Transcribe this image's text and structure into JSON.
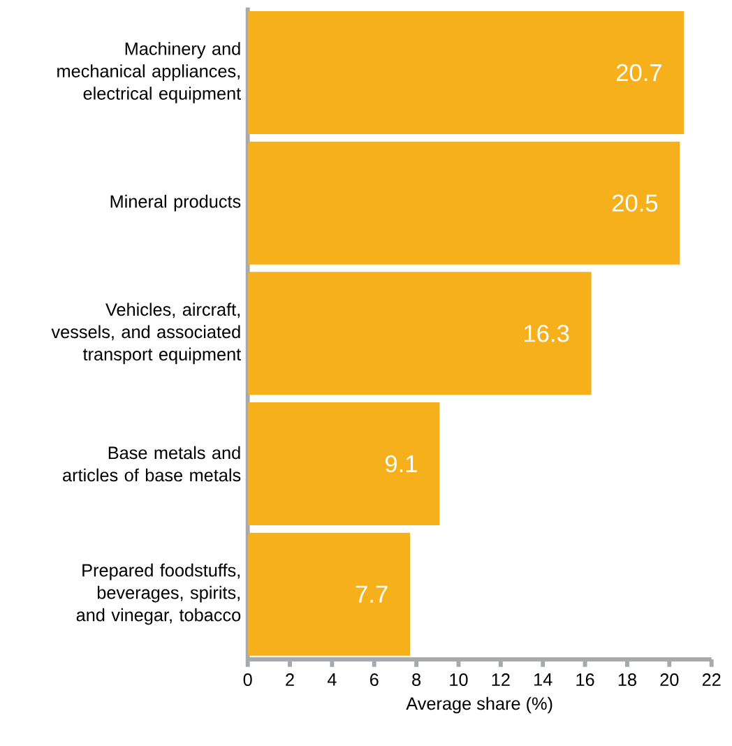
{
  "chart_data": {
    "type": "bar",
    "orientation": "horizontal",
    "xlabel": "Average share (%)",
    "categories": [
      "Machinery and mechanical appliances, electrical equipment",
      "Mineral products",
      "Vehicles, aircraft, vessels, and associated transport equipment",
      "Base metals and articles of base metals",
      "Prepared foodstuffs, beverages, spirits, and vinegar, tobacco"
    ],
    "values": [
      20.7,
      20.5,
      16.3,
      9.1,
      7.7
    ],
    "color": "#f6b01c",
    "xlim": [
      0,
      22
    ],
    "xticks": [
      0,
      2,
      4,
      6,
      8,
      10,
      12,
      14,
      16,
      18,
      20,
      22
    ],
    "data_labels": true
  }
}
